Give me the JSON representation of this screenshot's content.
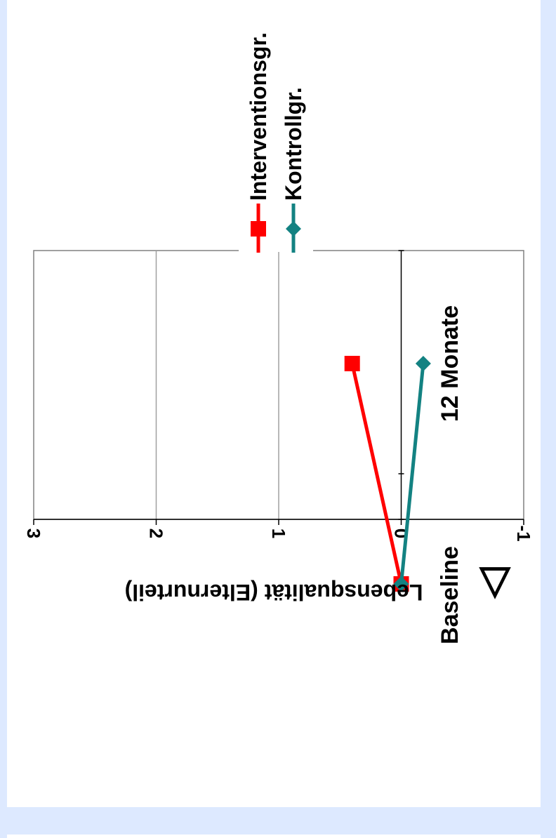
{
  "chart_data": {
    "type": "line",
    "orientation": "rotated-90-clockwise",
    "categories": [
      "Baseline",
      "12 Monate"
    ],
    "series": [
      {
        "name": "Interventionsgr.",
        "values": [
          0,
          0.4
        ],
        "color": "#ff0000",
        "marker": "square"
      },
      {
        "name": "Kontrollgr.",
        "values": [
          0,
          -0.18
        ],
        "color": "#138282",
        "marker": "diamond"
      }
    ],
    "ylabel": "Lebensqualität (Elternurteil)",
    "ylabel_symbol": "▽",
    "yticks": [
      "-1",
      "0",
      "1",
      "2",
      "3"
    ],
    "ylim": [
      -1,
      3
    ],
    "grid": true,
    "legend_position": "top"
  }
}
